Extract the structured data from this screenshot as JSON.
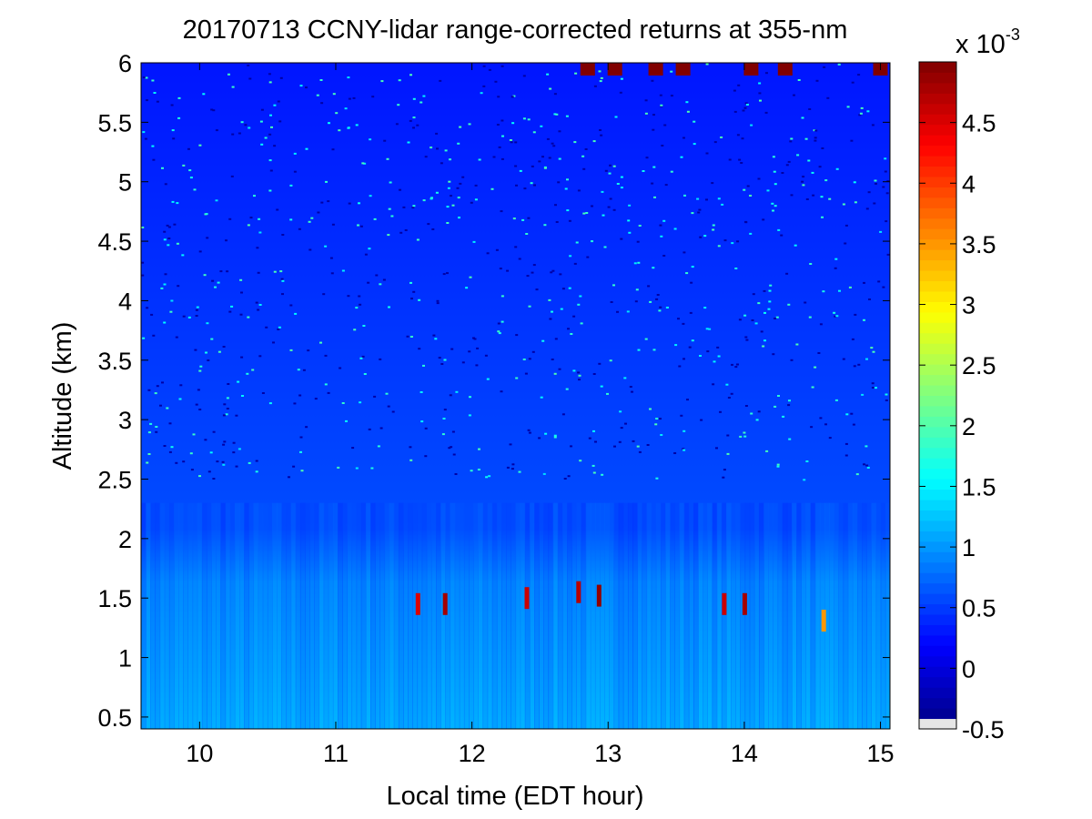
{
  "chart_data": {
    "type": "heatmap",
    "title": "20170713 CCNY-lidar range-corrected returns at 355-nm",
    "xlabel": "Local time (EDT hour)",
    "ylabel": "Altitude (km)",
    "xlim": [
      9.57,
      15.07
    ],
    "ylim": [
      0.4,
      6.0
    ],
    "x_ticks": [
      {
        "value": 10,
        "label": "10"
      },
      {
        "value": 11,
        "label": "11"
      },
      {
        "value": 12,
        "label": "12"
      },
      {
        "value": 13,
        "label": "13"
      },
      {
        "value": 14,
        "label": "14"
      },
      {
        "value": 15,
        "label": "15"
      }
    ],
    "y_ticks": [
      {
        "value": 0.5,
        "label": "0.5"
      },
      {
        "value": 1,
        "label": "1"
      },
      {
        "value": 1.5,
        "label": "1.5"
      },
      {
        "value": 2,
        "label": "2"
      },
      {
        "value": 2.5,
        "label": "2.5"
      },
      {
        "value": 3,
        "label": "3"
      },
      {
        "value": 3.5,
        "label": "3.5"
      },
      {
        "value": 4,
        "label": "4"
      },
      {
        "value": 4.5,
        "label": "4.5"
      },
      {
        "value": 5,
        "label": "5"
      },
      {
        "value": 5.5,
        "label": "5.5"
      },
      {
        "value": 6,
        "label": "6"
      }
    ],
    "colorbar": {
      "colormap": "jet",
      "range": [
        -0.5,
        5.0
      ],
      "multiplier_label": "x 10",
      "multiplier_exponent": "-3",
      "ticks": [
        {
          "value": -0.5,
          "label": "-0.5"
        },
        {
          "value": 0,
          "label": "0"
        },
        {
          "value": 0.5,
          "label": "0.5"
        },
        {
          "value": 1,
          "label": "1"
        },
        {
          "value": 1.5,
          "label": "1.5"
        },
        {
          "value": 2,
          "label": "2"
        },
        {
          "value": 2.5,
          "label": "2.5"
        },
        {
          "value": 3,
          "label": "3"
        },
        {
          "value": 3.5,
          "label": "3.5"
        },
        {
          "value": 4,
          "label": "4"
        },
        {
          "value": 4.5,
          "label": "4.5"
        }
      ]
    },
    "features": {
      "near_surface_value": 1.5,
      "mid_layer_value": 0.6,
      "upper_background_value": 0.3,
      "aerosol_features": [
        {
          "time": 11.6,
          "altitude": 1.45,
          "value": 4.5
        },
        {
          "time": 11.8,
          "altitude": 1.45,
          "value": 4.8
        },
        {
          "time": 12.4,
          "altitude": 1.5,
          "value": 4.6
        },
        {
          "time": 12.78,
          "altitude": 1.55,
          "value": 4.7
        },
        {
          "time": 12.93,
          "altitude": 1.52,
          "value": 4.9
        },
        {
          "time": 13.85,
          "altitude": 1.45,
          "value": 4.6
        },
        {
          "time": 14.0,
          "altitude": 1.45,
          "value": 4.8
        },
        {
          "time": 14.58,
          "altitude": 1.31,
          "value": 3.5
        }
      ],
      "top_noise_times": [
        12.85,
        13.05,
        13.35,
        13.55,
        14.05,
        14.3,
        15.0
      ]
    }
  }
}
